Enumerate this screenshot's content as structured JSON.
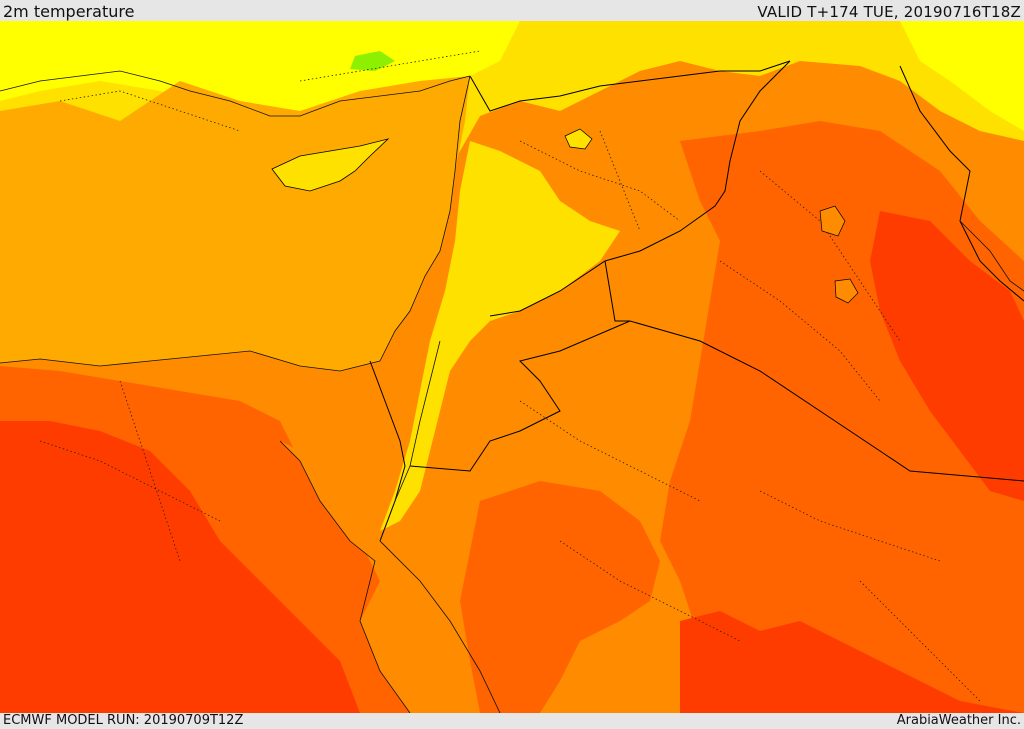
{
  "header": {
    "variable_label": "2m temperature",
    "valid_label": "VALID T+174 TUE, 20190716T18Z"
  },
  "footer": {
    "model_run_label": "ECMWF MODEL RUN: 20190709T12Z",
    "credit_label": "ArabiaWeather Inc."
  },
  "palette": {
    "green": "#8cf000",
    "pale_yellow": "#ffff00",
    "yellow": "#ffe100",
    "light_orange": "#ffb400",
    "orange": "#ff8c00",
    "dark_orange": "#ff6400",
    "red_orange": "#ff3c00",
    "sea_orange": "#ffaa00",
    "border_color": "#000000"
  }
}
